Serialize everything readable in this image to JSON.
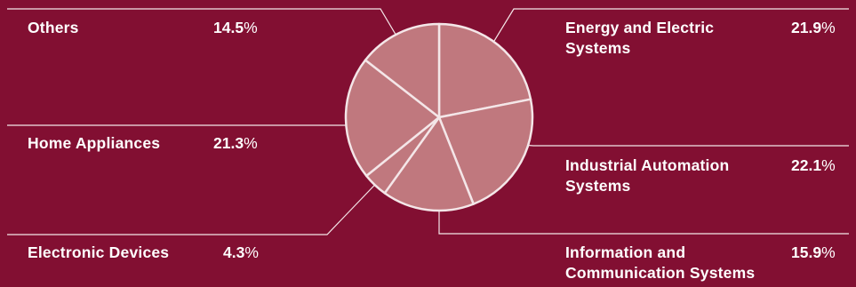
{
  "chart_data": {
    "type": "pie",
    "title": "",
    "slices": [
      {
        "label_lines": [
          "Energy and Electric",
          "Systems"
        ],
        "value": 21.9,
        "value_text": "21.9"
      },
      {
        "label_lines": [
          "Industrial Automation",
          "Systems"
        ],
        "value": 22.1,
        "value_text": "22.1"
      },
      {
        "label_lines": [
          "Information and",
          "Communication Systems"
        ],
        "value": 15.9,
        "value_text": "15.9"
      },
      {
        "label_lines": [
          "Electronic Devices"
        ],
        "value": 4.3,
        "value_text": "4.3"
      },
      {
        "label_lines": [
          "Home Appliances"
        ],
        "value": 21.3,
        "value_text": "21.3"
      },
      {
        "label_lines": [
          "Others"
        ],
        "value": 14.5,
        "value_text": "14.5"
      }
    ],
    "unit": "%",
    "colors": {
      "background": "#820f32",
      "slice_fill": "#c0787e",
      "slice_stroke": "#f4e6e8",
      "leader_line": "#f4e6e8",
      "text": "#ffffff"
    }
  }
}
